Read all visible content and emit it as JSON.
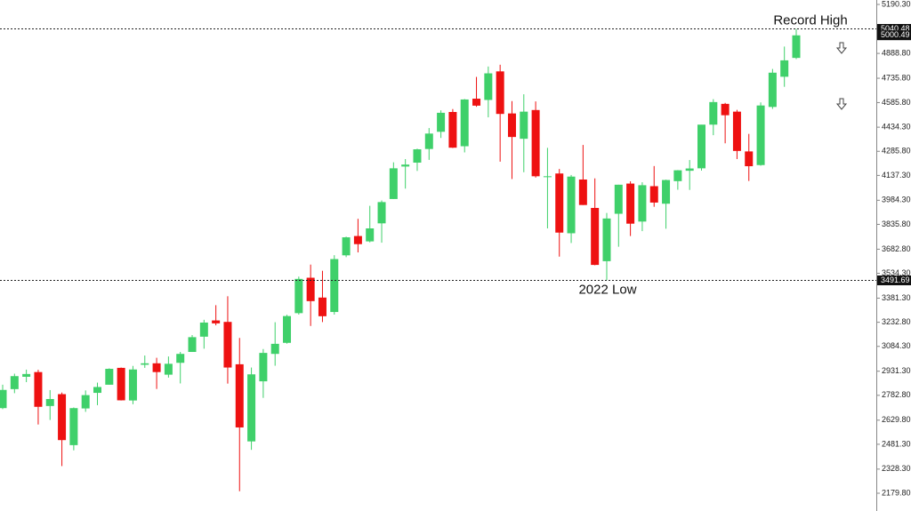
{
  "chart_data": {
    "type": "candlestick",
    "up_color": "#3fd06a",
    "down_color": "#ee1111",
    "open": [
      2704,
      2821,
      2897,
      2926,
      2717,
      2790,
      2476,
      2702,
      2798,
      2848,
      2952,
      2751,
      2971,
      2980,
      2910,
      2983,
      3050,
      3144,
      3244,
      3235,
      2974,
      2499,
      2869,
      3038,
      3106,
      3289,
      3507,
      3385,
      3296,
      3645,
      3764,
      3731,
      3842,
      3992,
      4192,
      4216,
      4300,
      4406,
      4528,
      4317,
      4610,
      4602,
      4778,
      4519,
      4363,
      4540,
      4131,
      4149,
      3781,
      4112,
      3937,
      3609,
      3901,
      4087,
      3853,
      4071,
      3963,
      4102,
      4166,
      4181,
      4450,
      4578,
      4530,
      4285,
      4201,
      4559,
      4745,
      4861
    ],
    "high": [
      2848,
      2916,
      2941,
      2940,
      2815,
      2800,
      2708,
      2813,
      2861,
      2949,
      2954,
      2964,
      3028,
      3014,
      3022,
      3050,
      3154,
      3248,
      3338,
      3393,
      3136,
      2954,
      3068,
      3233,
      3279,
      3514,
      3588,
      3550,
      3646,
      3760,
      3870,
      3950,
      3983,
      4218,
      4238,
      4302,
      4429,
      4538,
      4546,
      4608,
      4744,
      4808,
      4819,
      4595,
      4637,
      4593,
      4307,
      4177,
      4140,
      4325,
      4119,
      3906,
      4080,
      4101,
      4095,
      4195,
      4111,
      4170,
      4232,
      4449,
      4607,
      4584,
      4541,
      4393,
      4587,
      4793,
      4931,
      5040
    ],
    "low": [
      2698,
      2796,
      2864,
      2603,
      2631,
      2347,
      2444,
      2681,
      2722,
      2848,
      2751,
      2728,
      2952,
      2822,
      2892,
      2856,
      3050,
      3070,
      3214,
      2855,
      2192,
      2447,
      2767,
      2965,
      3101,
      3280,
      3210,
      3234,
      3280,
      3634,
      3663,
      3725,
      3723,
      3992,
      4056,
      4165,
      4233,
      4368,
      4306,
      4279,
      4560,
      4495,
      4222,
      4115,
      4157,
      4124,
      3811,
      3637,
      3721,
      3955,
      3584,
      3492,
      3698,
      3764,
      3794,
      3944,
      3809,
      4049,
      4048,
      4167,
      4385,
      4335,
      4238,
      4103,
      4197,
      4547,
      4683,
      4854
    ],
    "close": [
      2816,
      2901,
      2914,
      2712,
      2760,
      2507,
      2704,
      2784,
      2834,
      2946,
      2752,
      2942,
      2980,
      2926,
      2977,
      3038,
      3141,
      3231,
      3226,
      2954,
      2585,
      2912,
      3044,
      3100,
      3271,
      3500,
      3363,
      3270,
      3622,
      3756,
      3714,
      3811,
      3973,
      4181,
      4204,
      4298,
      4395,
      4523,
      4308,
      4605,
      4567,
      4766,
      4516,
      4374,
      4530,
      4132,
      4132,
      3785,
      4130,
      3955,
      3586,
      3872,
      4080,
      3840,
      4077,
      3970,
      4109,
      4169,
      4180,
      4450,
      4589,
      4508,
      4288,
      4194,
      4568,
      4770,
      4846,
      5000
    ],
    "ylim": [
      2070.3,
      5217.7
    ],
    "yticks": [
      {
        "value": 5190.3,
        "label": "5190.30"
      },
      {
        "value": 4888.8,
        "label": "4888.80"
      },
      {
        "value": 4735.8,
        "label": "4735.80"
      },
      {
        "value": 4585.8,
        "label": "4585.80"
      },
      {
        "value": 4434.3,
        "label": "4434.30"
      },
      {
        "value": 4285.8,
        "label": "4285.80"
      },
      {
        "value": 4137.3,
        "label": "4137.30"
      },
      {
        "value": 3984.3,
        "label": "3984.30"
      },
      {
        "value": 3835.8,
        "label": "3835.80"
      },
      {
        "value": 3682.8,
        "label": "3682.80"
      },
      {
        "value": 3534.3,
        "label": "3534.30"
      },
      {
        "value": 3381.3,
        "label": "3381.30"
      },
      {
        "value": 3232.8,
        "label": "3232.80"
      },
      {
        "value": 3084.3,
        "label": "3084.30"
      },
      {
        "value": 2931.3,
        "label": "2931.30"
      },
      {
        "value": 2782.8,
        "label": "2782.80"
      },
      {
        "value": 2629.8,
        "label": "2629.80"
      },
      {
        "value": 2481.3,
        "label": "2481.30"
      },
      {
        "value": 2328.3,
        "label": "2328.30"
      },
      {
        "value": 2179.8,
        "label": "2179.80"
      }
    ],
    "levels": [
      {
        "text": "Record High",
        "value": 5040.48
      },
      {
        "text": "2022 Low",
        "value": 3491.69
      }
    ],
    "current_price": 5000.49
  }
}
